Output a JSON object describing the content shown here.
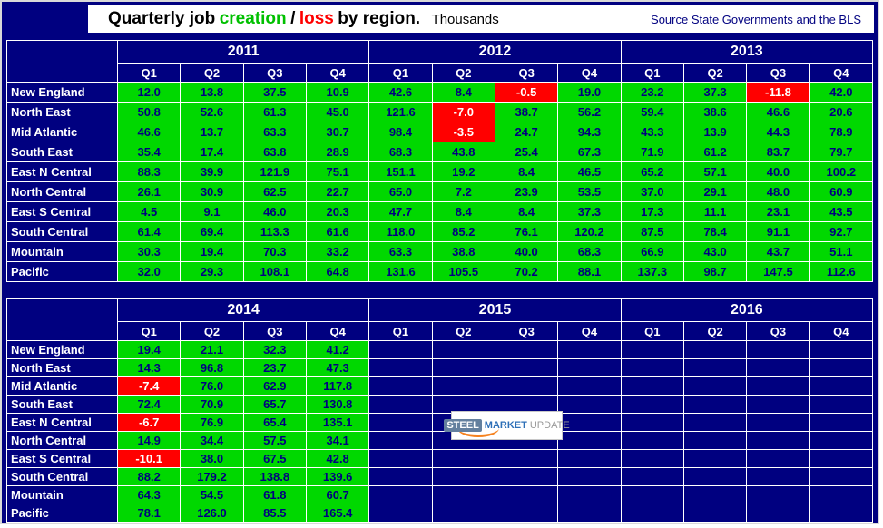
{
  "title": {
    "lead": "Quarterly job",
    "creation": "creation",
    "slash": "/",
    "loss": "loss",
    "tail": "by region.",
    "units": "Thousands",
    "source": "Source State Governments and the BLS"
  },
  "logo": {
    "steel": "STEEL",
    "market": "MARKET",
    "update": "UPDATE"
  },
  "colors": {
    "navy": "#000080",
    "green": "#00d800",
    "red": "#ff0000",
    "grid": "#ffffff",
    "title-green": "#00c000",
    "logo-orange": "#f5821f",
    "logo-blue": "#2d6fb7",
    "logo-gray": "#999999",
    "logo-steel": "#64809e"
  },
  "chart_data": {
    "type": "table",
    "title": "Quarterly job creation / loss by region.",
    "units": "Thousands",
    "source": "Source State Governments and the BLS",
    "regions": [
      "New England",
      "North East",
      "Mid Atlantic",
      "South East",
      "East N Central",
      "North Central",
      "East S Central",
      "South Central",
      "Mountain",
      "Pacific"
    ],
    "tables": [
      {
        "years": [
          "2011",
          "2012",
          "2013"
        ],
        "quarters": [
          "Q1",
          "Q2",
          "Q3",
          "Q4"
        ],
        "rows": [
          [
            12.0,
            13.8,
            37.5,
            10.9,
            42.6,
            8.4,
            -0.5,
            19.0,
            23.2,
            37.3,
            -11.8,
            42.0
          ],
          [
            50.8,
            52.6,
            61.3,
            45.0,
            121.6,
            -7.0,
            38.7,
            56.2,
            59.4,
            38.6,
            46.6,
            20.6
          ],
          [
            46.6,
            13.7,
            63.3,
            30.7,
            98.4,
            -3.5,
            24.7,
            94.3,
            43.3,
            13.9,
            44.3,
            78.9
          ],
          [
            35.4,
            17.4,
            63.8,
            28.9,
            68.3,
            43.8,
            25.4,
            67.3,
            71.9,
            61.2,
            83.7,
            79.7
          ],
          [
            88.3,
            39.9,
            121.9,
            75.1,
            151.1,
            19.2,
            8.4,
            46.5,
            65.2,
            57.1,
            40.0,
            100.2
          ],
          [
            26.1,
            30.9,
            62.5,
            22.7,
            65.0,
            7.2,
            23.9,
            53.5,
            37.0,
            29.1,
            48.0,
            60.9
          ],
          [
            4.5,
            9.1,
            46.0,
            20.3,
            47.7,
            8.4,
            8.4,
            37.3,
            17.3,
            11.1,
            23.1,
            43.5
          ],
          [
            61.4,
            69.4,
            113.3,
            61.6,
            118.0,
            85.2,
            76.1,
            120.2,
            87.5,
            78.4,
            91.1,
            92.7
          ],
          [
            30.3,
            19.4,
            70.3,
            33.2,
            63.3,
            38.8,
            40.0,
            68.3,
            66.9,
            43.0,
            43.7,
            51.1
          ],
          [
            32.0,
            29.3,
            108.1,
            64.8,
            131.6,
            105.5,
            70.2,
            88.1,
            137.3,
            98.7,
            147.5,
            112.6
          ]
        ]
      },
      {
        "years": [
          "2014",
          "2015",
          "2016"
        ],
        "quarters": [
          "Q1",
          "Q2",
          "Q3",
          "Q4"
        ],
        "rows": [
          [
            19.4,
            21.1,
            32.3,
            41.2,
            null,
            null,
            null,
            null,
            null,
            null,
            null,
            null
          ],
          [
            14.3,
            96.8,
            23.7,
            47.3,
            null,
            null,
            null,
            null,
            null,
            null,
            null,
            null
          ],
          [
            -7.4,
            76.0,
            62.9,
            117.8,
            null,
            null,
            null,
            null,
            null,
            null,
            null,
            null
          ],
          [
            72.4,
            70.9,
            65.7,
            130.8,
            null,
            null,
            null,
            null,
            null,
            null,
            null,
            null
          ],
          [
            -6.7,
            76.9,
            65.4,
            135.1,
            null,
            null,
            null,
            null,
            null,
            null,
            null,
            null
          ],
          [
            14.9,
            34.4,
            57.5,
            34.1,
            null,
            null,
            null,
            null,
            null,
            null,
            null,
            null
          ],
          [
            -10.1,
            38.0,
            67.5,
            42.8,
            null,
            null,
            null,
            null,
            null,
            null,
            null,
            null
          ],
          [
            88.2,
            179.2,
            138.8,
            139.6,
            null,
            null,
            null,
            null,
            null,
            null,
            null,
            null
          ],
          [
            64.3,
            54.5,
            61.8,
            60.7,
            null,
            null,
            null,
            null,
            null,
            null,
            null,
            null
          ],
          [
            78.1,
            126.0,
            85.5,
            165.4,
            null,
            null,
            null,
            null,
            null,
            null,
            null,
            null
          ]
        ]
      }
    ]
  }
}
